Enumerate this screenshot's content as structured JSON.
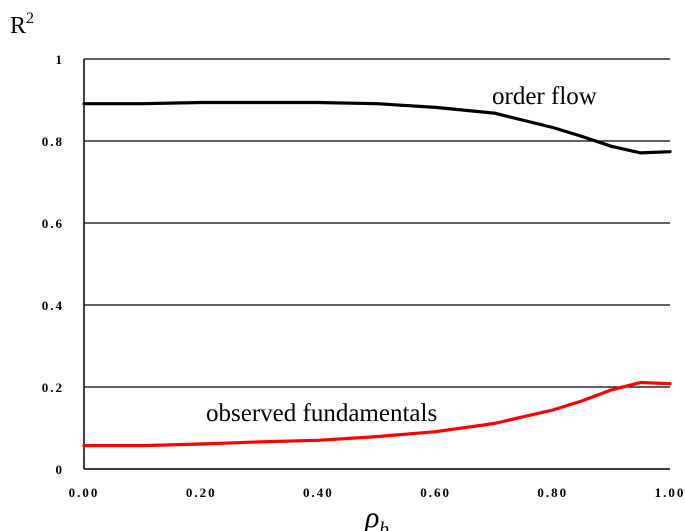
{
  "chart_data": {
    "type": "line",
    "ylabel": "R",
    "ylabel_superscript": "2",
    "xlabel": "ρ",
    "xlabel_subscript": "b",
    "xlim": [
      0,
      1
    ],
    "ylim": [
      0,
      1
    ],
    "x_ticks": [
      "0.00",
      "0.20",
      "0.40",
      "0.60",
      "0.80",
      "1.00"
    ],
    "y_ticks": [
      "0",
      "0.2",
      "0.4",
      "0.6",
      "0.8",
      "1"
    ],
    "grid": "horizontal",
    "annotations": [
      {
        "text": "order flow",
        "series": 0
      },
      {
        "text": "observed fundamentals",
        "series": 1
      }
    ],
    "series": [
      {
        "color": "#000000",
        "x": [
          0.0,
          0.1,
          0.2,
          0.3,
          0.4,
          0.5,
          0.6,
          0.7,
          0.8,
          0.85,
          0.9,
          0.95,
          1.0
        ],
        "y": [
          0.891,
          0.891,
          0.894,
          0.894,
          0.894,
          0.891,
          0.882,
          0.868,
          0.833,
          0.811,
          0.787,
          0.771,
          0.774
        ]
      },
      {
        "color": "#ff0000",
        "x": [
          0.0,
          0.1,
          0.2,
          0.3,
          0.4,
          0.5,
          0.6,
          0.7,
          0.8,
          0.85,
          0.9,
          0.95,
          1.0
        ],
        "y": [
          0.057,
          0.057,
          0.061,
          0.066,
          0.07,
          0.079,
          0.091,
          0.111,
          0.144,
          0.166,
          0.193,
          0.211,
          0.208
        ]
      }
    ]
  }
}
